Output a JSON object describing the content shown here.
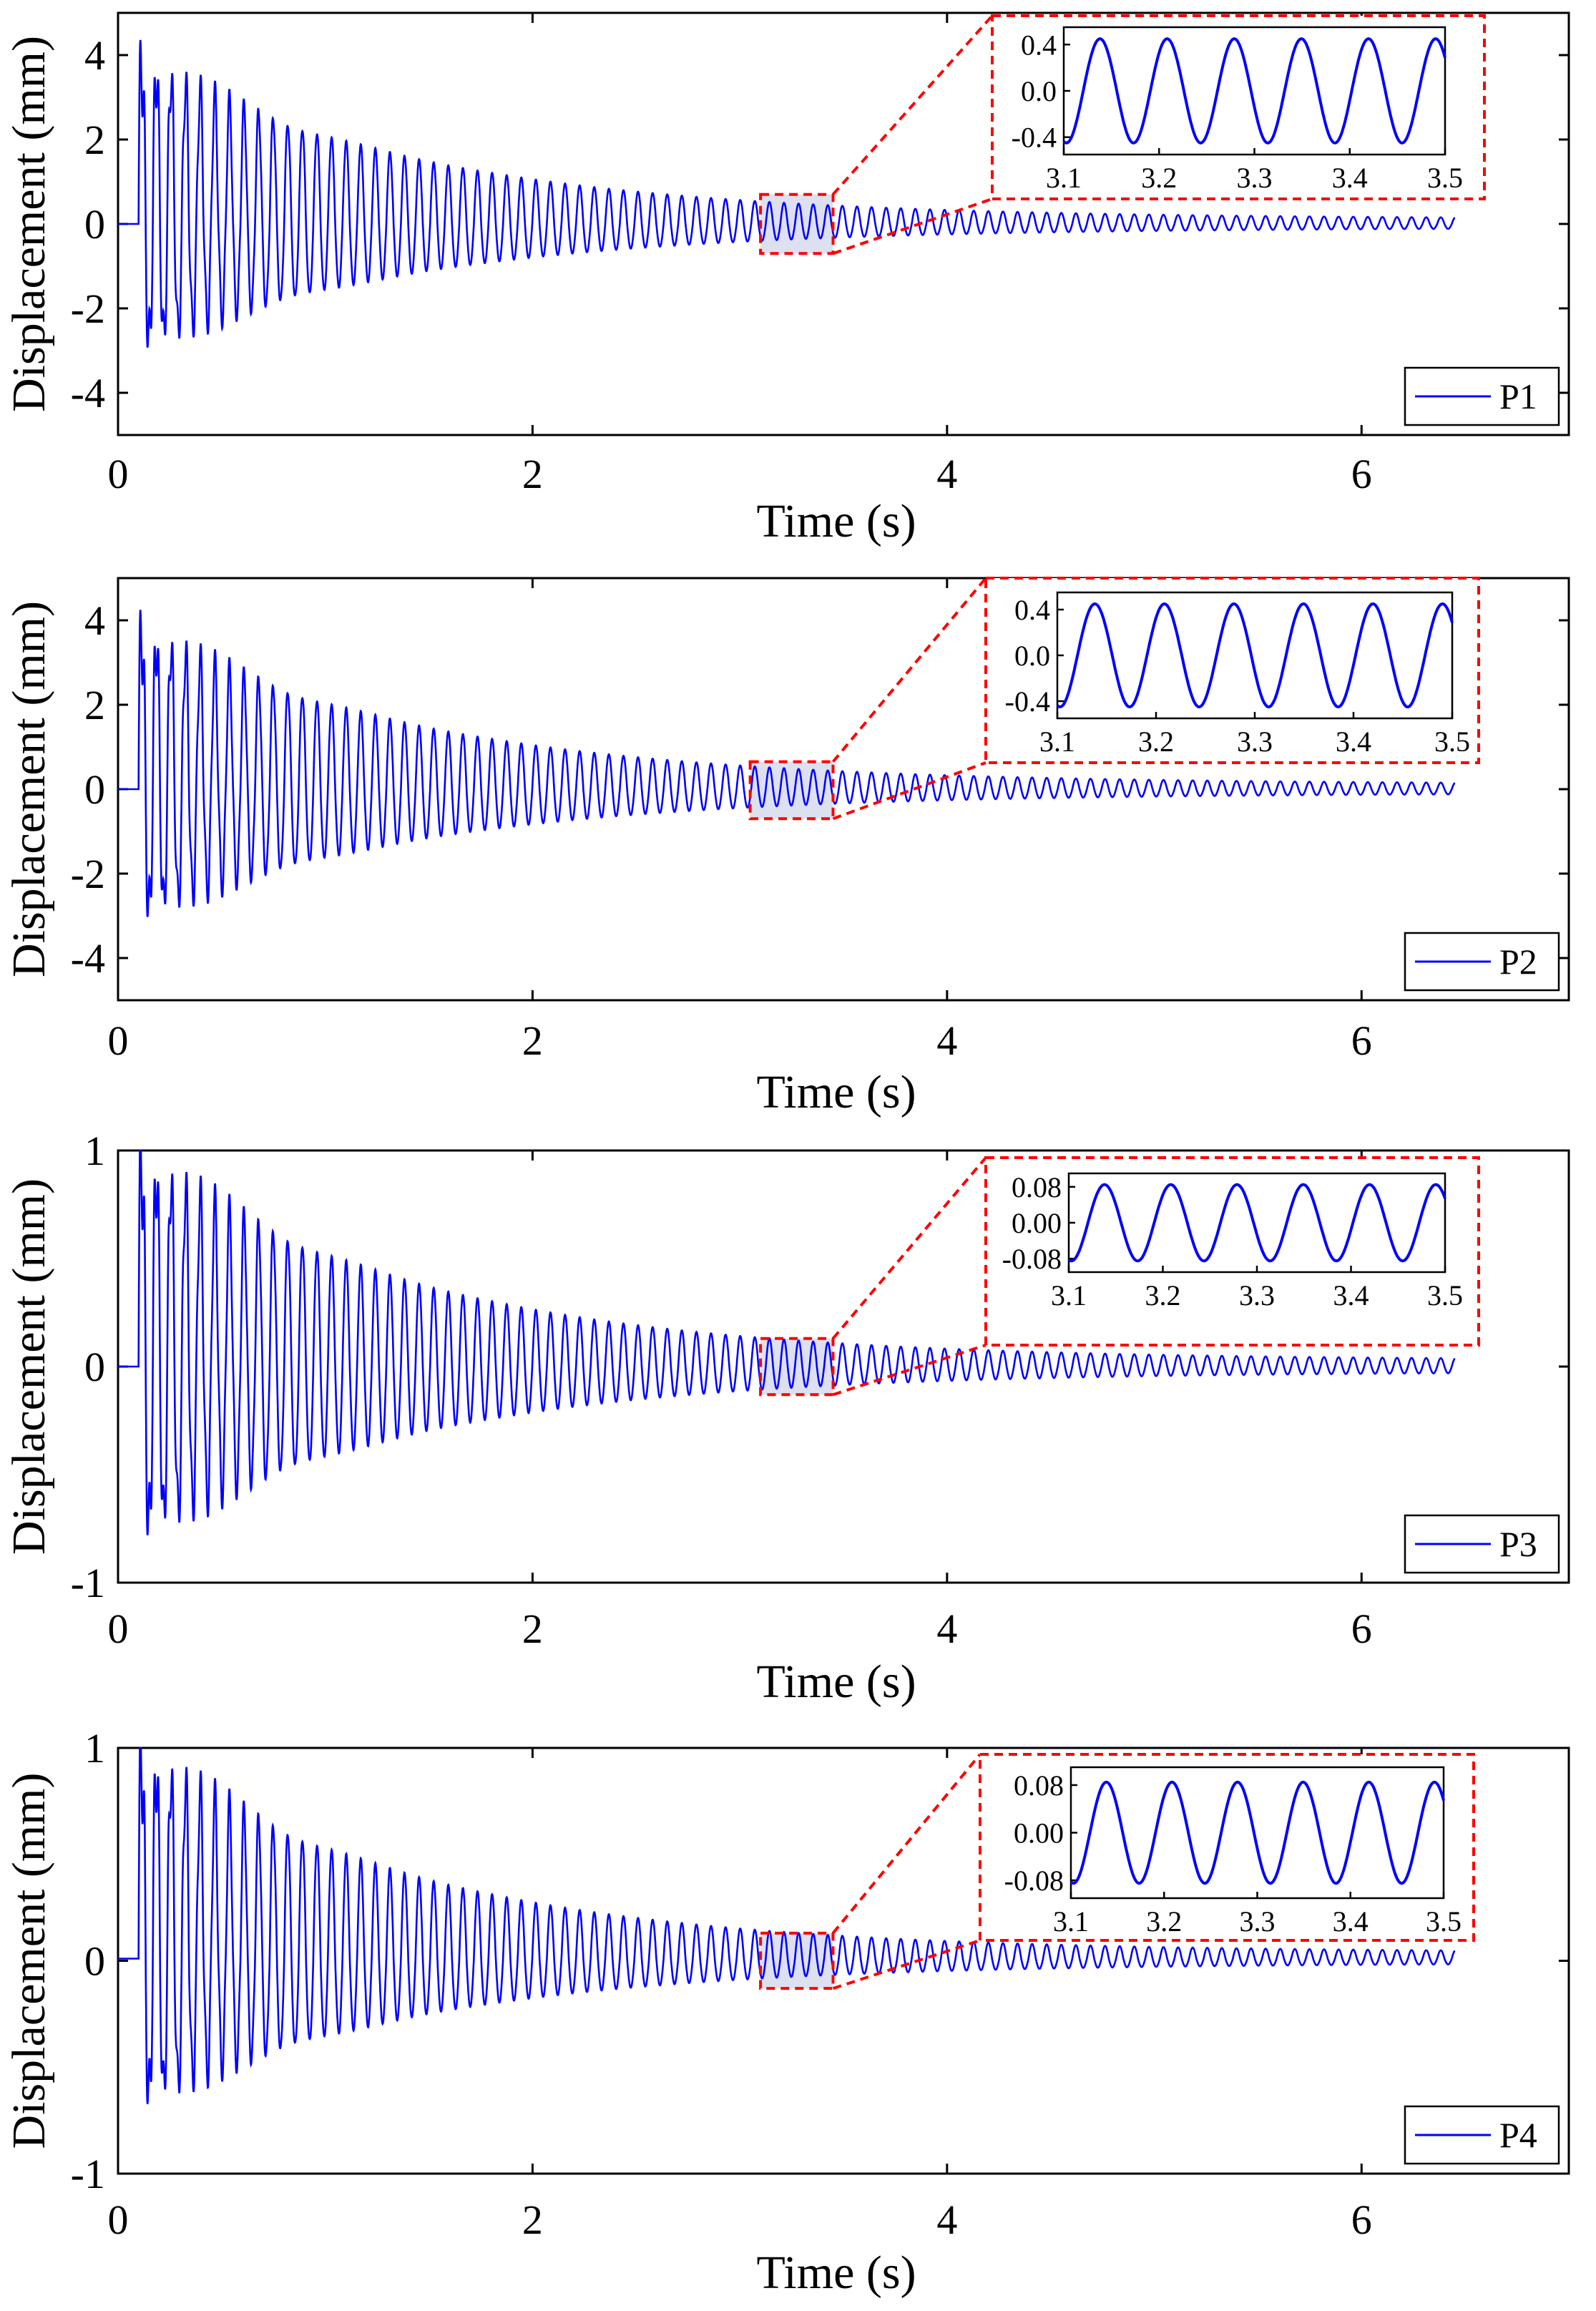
{
  "colors": {
    "trace": "#0000ff",
    "zoom_box": "#ff0000",
    "zoom_fill": "#dde0ee",
    "axes": "#000000"
  },
  "chart_data": [
    {
      "type": "line",
      "id": "P1",
      "xlabel": "Time (s)",
      "ylabel": "Displacement (mm)",
      "xlim": [
        0,
        7.0
      ],
      "ylim": [
        -5,
        5
      ],
      "xticks": [
        "0",
        "2",
        "4",
        "6"
      ],
      "xtick_values": [
        0,
        2,
        4,
        6
      ],
      "yticks": [
        "-4",
        "-2",
        "0",
        "2",
        "4"
      ],
      "ytick_values": [
        -4,
        -2,
        0,
        2,
        4
      ],
      "legend": "P1",
      "legend_loc": "lower-right",
      "series": [
        {
          "name": "P1",
          "t_start": 0.0,
          "t_impact": 0.1,
          "t_end": 6.45,
          "peak": 4.0,
          "min": -3.0,
          "freq_hz": 14.2,
          "end_amplitude": 0.12,
          "dc_offset": 0.0
        }
      ],
      "zoom_region": {
        "x": [
          3.1,
          3.45
        ],
        "y": [
          -0.7,
          0.7
        ]
      },
      "inset": {
        "xlim": [
          3.1,
          3.5
        ],
        "ylim": [
          -0.55,
          0.55
        ],
        "xticks": [
          "3.1",
          "3.2",
          "3.3",
          "3.4",
          "3.5"
        ],
        "xtick_values": [
          3.1,
          3.2,
          3.3,
          3.4,
          3.5
        ],
        "yticks": [
          "0.4",
          "0.0",
          "-0.4"
        ],
        "ytick_values": [
          0.4,
          0.0,
          -0.4
        ],
        "amplitude": 0.45,
        "freq_hz": 14.2
      }
    },
    {
      "type": "line",
      "id": "P2",
      "xlabel": "Time (s)",
      "ylabel": "Displacement (mm)",
      "xlim": [
        0,
        7.0
      ],
      "ylim": [
        -5,
        5
      ],
      "xticks": [
        "0",
        "2",
        "4",
        "6"
      ],
      "xtick_values": [
        0,
        2,
        4,
        6
      ],
      "yticks": [
        "-4",
        "-2",
        "0",
        "2",
        "4"
      ],
      "ytick_values": [
        -4,
        -2,
        0,
        2,
        4
      ],
      "legend": "P2",
      "legend_loc": "lower-right",
      "series": [
        {
          "name": "P2",
          "t_start": 0.0,
          "t_impact": 0.1,
          "t_end": 6.45,
          "peak": 3.9,
          "min": -3.1,
          "freq_hz": 14.2,
          "end_amplitude": 0.12,
          "dc_offset": 0.0
        }
      ],
      "zoom_region": {
        "x": [
          3.05,
          3.45
        ],
        "y": [
          -0.7,
          0.65
        ]
      },
      "inset": {
        "xlim": [
          3.1,
          3.5
        ],
        "ylim": [
          -0.55,
          0.55
        ],
        "xticks": [
          "3.1",
          "3.2",
          "3.3",
          "3.4",
          "3.5"
        ],
        "xtick_values": [
          3.1,
          3.2,
          3.3,
          3.4,
          3.5
        ],
        "yticks": [
          "0.4",
          "0.0",
          "-0.4"
        ],
        "ytick_values": [
          0.4,
          0.0,
          -0.4
        ],
        "amplitude": 0.45,
        "freq_hz": 14.2
      }
    },
    {
      "type": "line",
      "id": "P3",
      "xlabel": "Time (s)",
      "ylabel": "Displacement (mm)",
      "xlim": [
        0,
        7.0
      ],
      "ylim": [
        -1,
        1
      ],
      "xticks": [
        "0",
        "2",
        "4",
        "6"
      ],
      "xtick_values": [
        0,
        2,
        4,
        6
      ],
      "yticks": [
        "-1",
        "0",
        "1"
      ],
      "ytick_values": [
        -1,
        0,
        1
      ],
      "legend": "P3",
      "legend_loc": "lower-right",
      "series": [
        {
          "name": "P3",
          "t_start": 0.0,
          "t_impact": 0.1,
          "t_end": 6.45,
          "peak": 1.0,
          "min": -0.8,
          "freq_hz": 14.2,
          "end_amplitude": 0.03,
          "dc_offset": 0.0
        }
      ],
      "zoom_region": {
        "x": [
          3.1,
          3.45
        ],
        "y": [
          -0.13,
          0.13
        ]
      },
      "inset": {
        "xlim": [
          3.1,
          3.5
        ],
        "ylim": [
          -0.11,
          0.11
        ],
        "xticks": [
          "3.1",
          "3.2",
          "3.3",
          "3.4",
          "3.5"
        ],
        "xtick_values": [
          3.1,
          3.2,
          3.3,
          3.4,
          3.5
        ],
        "yticks": [
          "0.08",
          "0.00",
          "-0.08"
        ],
        "ytick_values": [
          0.08,
          0.0,
          -0.08
        ],
        "amplitude": 0.085,
        "freq_hz": 14.2
      }
    },
    {
      "type": "line",
      "id": "P4",
      "xlabel": "Time (s)",
      "ylabel": "Displacement (mm)",
      "xlim": [
        0,
        7.0
      ],
      "ylim": [
        -1,
        1
      ],
      "xticks": [
        "0",
        "2",
        "4",
        "6"
      ],
      "xtick_values": [
        0,
        2,
        4,
        6
      ],
      "yticks": [
        "-1",
        "0",
        "1"
      ],
      "ytick_values": [
        -1,
        0,
        1
      ],
      "legend": "P4",
      "legend_loc": "lower-right",
      "series": [
        {
          "name": "P4",
          "t_start": 0.0,
          "t_impact": 0.1,
          "t_end": 6.45,
          "peak": 1.0,
          "min": -0.7,
          "freq_hz": 14.2,
          "end_amplitude": 0.03,
          "dc_offset": 0.01
        }
      ],
      "zoom_region": {
        "x": [
          3.1,
          3.45
        ],
        "y": [
          -0.13,
          0.13
        ]
      },
      "inset": {
        "xlim": [
          3.1,
          3.5
        ],
        "ylim": [
          -0.11,
          0.11
        ],
        "xticks": [
          "3.1",
          "3.2",
          "3.3",
          "3.4",
          "3.5"
        ],
        "xtick_values": [
          3.1,
          3.2,
          3.3,
          3.4,
          3.5
        ],
        "yticks": [
          "0.08",
          "0.00",
          "-0.08"
        ],
        "ytick_values": [
          0.08,
          0.0,
          -0.08
        ],
        "amplitude": 0.085,
        "freq_hz": 14.2
      }
    }
  ]
}
